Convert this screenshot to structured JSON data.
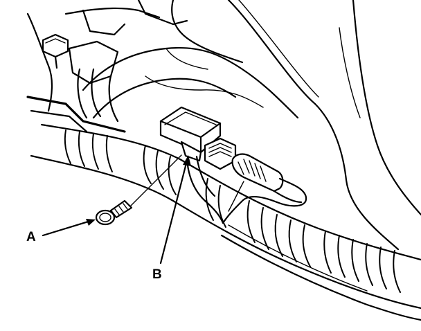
{
  "callouts": {
    "a": {
      "label": "A"
    },
    "b": {
      "label": "B"
    }
  }
}
